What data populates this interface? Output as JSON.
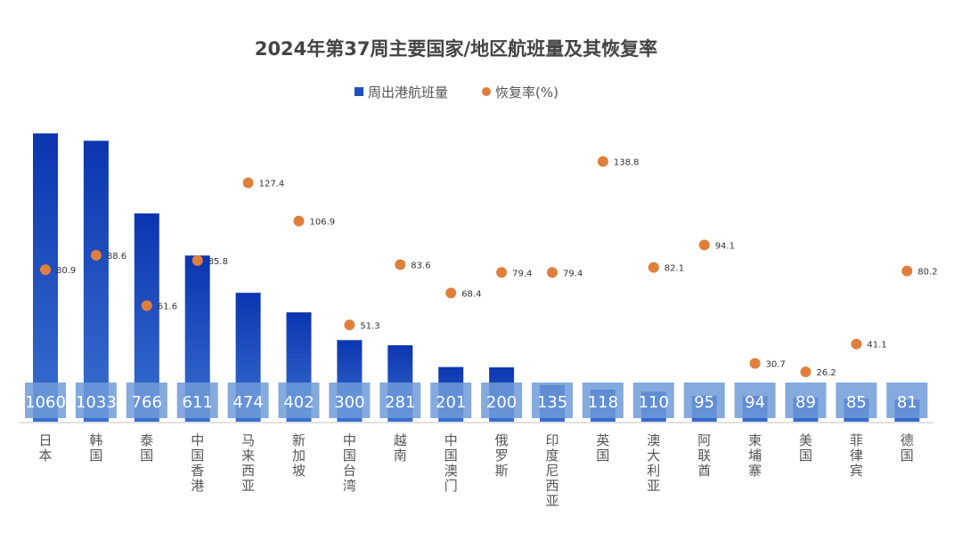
{
  "chart_data": {
    "type": "bar+scatter",
    "title": "2024年第37周主要国家/地区航班量及其恢复率",
    "legend_position": "top",
    "grid": false,
    "categories": [
      "日本",
      "韩国",
      "泰国",
      "中国香港",
      "马来西亚",
      "新加坡",
      "中国台湾",
      "越南",
      "中国澳门",
      "俄罗斯",
      "印度尼西亚",
      "英国",
      "澳大利亚",
      "阿联酋",
      "柬埔寨",
      "美国",
      "菲律宾",
      "德国"
    ],
    "series": [
      {
        "name": "周出港航班量",
        "type": "bar",
        "color": "#1f4fbf",
        "values": [
          1060,
          1033,
          766,
          611,
          474,
          402,
          300,
          281,
          201,
          200,
          135,
          118,
          110,
          95,
          94,
          89,
          85,
          81
        ]
      },
      {
        "name": "恢复率(%)",
        "type": "scatter",
        "color": "#e07f3c",
        "values": [
          80.9,
          88.6,
          61.6,
          85.8,
          127.4,
          106.9,
          51.3,
          83.6,
          68.4,
          79.4,
          79.4,
          138.8,
          82.1,
          94.1,
          30.7,
          26.2,
          41.1,
          80.2
        ]
      }
    ]
  }
}
